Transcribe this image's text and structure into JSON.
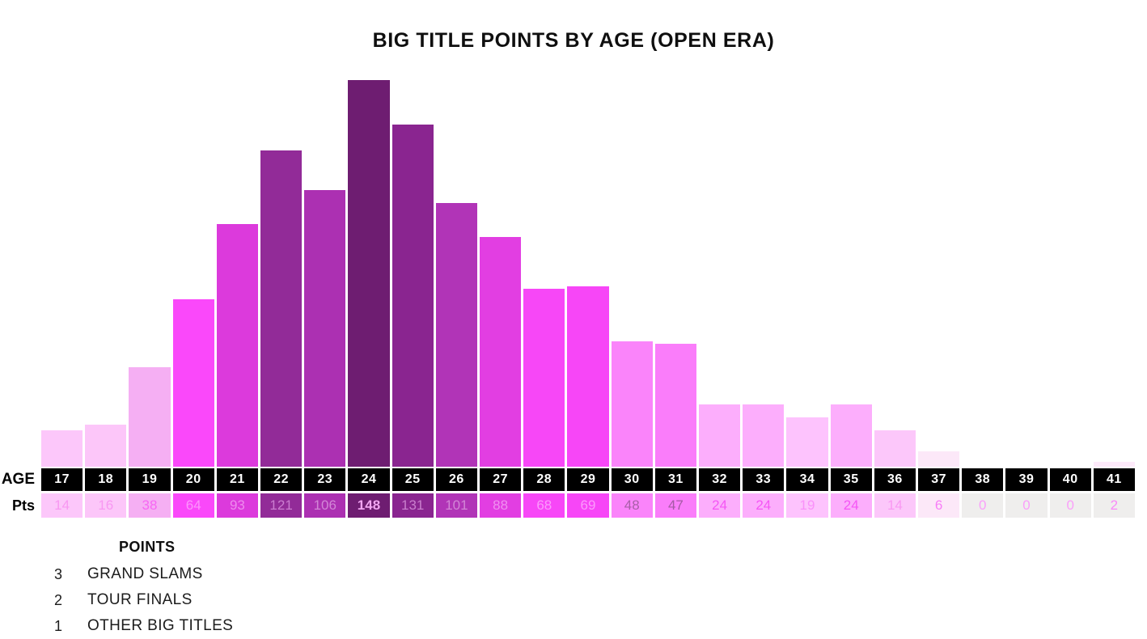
{
  "title": "BIG TITLE POINTS BY AGE (OPEN ERA)",
  "rows": {
    "age_label": "AGE",
    "pts_label": "Pts"
  },
  "legend": {
    "heading": "POINTS",
    "items": [
      {
        "points": "3",
        "label": "GRAND SLAMS"
      },
      {
        "points": "2",
        "label": "TOUR FINALS"
      },
      {
        "points": "1",
        "label": "OTHER BIG TITLES"
      }
    ]
  },
  "colors": {
    "background": "#ffffff",
    "title_text": "#0f0f0f",
    "age_cell_bg": "#000000",
    "age_cell_text": "#ffffff",
    "zero_cell_bg": "#efeeed",
    "legend_text": "#1c1c1c"
  },
  "chart_data": {
    "type": "bar",
    "title": "BIG TITLE POINTS BY AGE (OPEN ERA)",
    "xlabel": "AGE",
    "ylabel": "Pts",
    "ylim": [
      0,
      148
    ],
    "grid": false,
    "legend_position": "bottom-left",
    "categories": [
      17,
      18,
      19,
      20,
      21,
      22,
      23,
      24,
      25,
      26,
      27,
      28,
      29,
      30,
      31,
      32,
      33,
      34,
      35,
      36,
      37,
      38,
      39,
      40,
      41
    ],
    "values": [
      14,
      16,
      38,
      64,
      93,
      121,
      106,
      148,
      131,
      101,
      88,
      68,
      69,
      48,
      47,
      24,
      24,
      19,
      24,
      14,
      6,
      0,
      0,
      0,
      2
    ],
    "emphasized_value": 148,
    "bar_colors": [
      "#fcc7fa",
      "#fcc6f9",
      "#f5aff3",
      "#fa48fa",
      "#dc3adc",
      "#922b98",
      "#ac30b2",
      "#6e1d71",
      "#8a2590",
      "#b134b7",
      "#e23ee2",
      "#f747f7",
      "#f746f7",
      "#fa84fa",
      "#fa7dfa",
      "#fcaefc",
      "#fcaefc",
      "#fdc3fd",
      "#fcaefc",
      "#fcc7fa",
      "#fce8f8",
      null,
      null,
      null,
      "#fdeafa"
    ],
    "pts_cell_bg": [
      "#fcc7fa",
      "#fcc6f9",
      "#f5aff3",
      "#fa48fa",
      "#dc3adc",
      "#922b98",
      "#ac30b2",
      "#6e1d71",
      "#8a2590",
      "#b134b7",
      "#e23ee2",
      "#f747f7",
      "#f746f7",
      "#fa84fa",
      "#fa7dfa",
      "#fcaefc",
      "#fcaefc",
      "#fdc3fd",
      "#fcaefc",
      "#fcc7fa",
      "#fce8f8",
      "#efeeed",
      "#efeeed",
      "#efeeed",
      "#efeeed"
    ],
    "pts_text_colors": [
      "#f897f2",
      "#f897f2",
      "#f767f3",
      "#fc94fc",
      "#ee8bee",
      "#cb7ed0",
      "#d286d6",
      "#f2a5f2",
      "#c97fcd",
      "#d286d6",
      "#f08ff0",
      "#fc9afc",
      "#fc9afc",
      "#a85fa8",
      "#a55aa5",
      "#f556f5",
      "#f556f5",
      "#fa91fa",
      "#f556f5",
      "#f998f3",
      "#f87df8",
      "#fa9ffa",
      "#fa9ffa",
      "#fa9ffa",
      "#f98af9"
    ]
  }
}
